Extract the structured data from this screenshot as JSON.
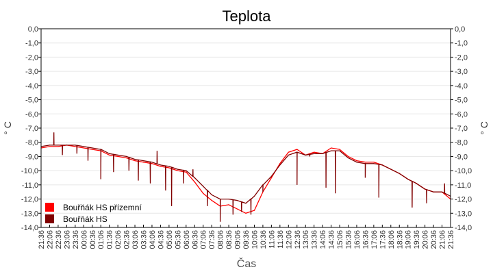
{
  "chart_data": {
    "type": "line",
    "title": "Teplota",
    "xlabel": "Čas",
    "ylabel": "° C",
    "ylim": [
      -14,
      0
    ],
    "yticks": [
      "0,0",
      "-1,0",
      "-2,0",
      "-3,0",
      "-4,0",
      "-5,0",
      "-6,0",
      "-7,0",
      "-8,0",
      "-9,0",
      "-10,0",
      "-11,0",
      "-12,0",
      "-13,0",
      "-14,0"
    ],
    "x": [
      "21:36",
      "22:06",
      "22:36",
      "23:06",
      "23:36",
      "00:06",
      "00:36",
      "01:06",
      "01:36",
      "02:06",
      "02:36",
      "03:06",
      "03:36",
      "04:06",
      "04:36",
      "05:06",
      "05:36",
      "06:06",
      "06:36",
      "07:06",
      "07:36",
      "08:06",
      "08:36",
      "09:06",
      "09:36",
      "10:06",
      "10:36",
      "11:06",
      "11:36",
      "12:06",
      "12:36",
      "13:06",
      "13:36",
      "14:06",
      "14:36",
      "15:06",
      "15:36",
      "16:06",
      "16:36",
      "17:06",
      "17:36",
      "18:06",
      "18:36",
      "19:06",
      "19:36",
      "20:06",
      "20:36",
      "21:06",
      "21:36"
    ],
    "grid": "horizontal",
    "legend_placement": "bottom-left",
    "series": [
      {
        "name": "Bouřňák HS přízemní",
        "color": "#ff0000",
        "values": [
          -8.4,
          -8.3,
          -8.3,
          -8.2,
          -8.3,
          -8.4,
          -8.5,
          -8.6,
          -8.9,
          -9.0,
          -9.1,
          -9.3,
          -9.4,
          -9.5,
          -9.7,
          -9.8,
          -10.0,
          -10.1,
          -10.8,
          -11.6,
          -12.1,
          -12.5,
          -12.4,
          -12.7,
          -13.0,
          -12.8,
          -11.5,
          -10.5,
          -9.5,
          -8.7,
          -8.5,
          -8.9,
          -8.7,
          -8.8,
          -8.4,
          -8.5,
          -9.0,
          -9.3,
          -9.4,
          -9.4,
          -9.6,
          -9.9,
          -10.2,
          -10.6,
          -10.9,
          -11.3,
          -11.5,
          -11.5,
          -12.0
        ]
      },
      {
        "name": "Bouřňák HS",
        "color": "#800000",
        "values": [
          -8.3,
          -8.2,
          -8.2,
          -8.2,
          -8.2,
          -8.3,
          -8.4,
          -8.5,
          -8.8,
          -8.9,
          -9.0,
          -9.2,
          -9.3,
          -9.4,
          -9.6,
          -9.7,
          -9.9,
          -10.0,
          -10.5,
          -11.1,
          -11.7,
          -12.0,
          -12.0,
          -12.1,
          -12.3,
          -11.8,
          -11.0,
          -10.4,
          -9.6,
          -8.9,
          -8.7,
          -8.9,
          -8.8,
          -8.8,
          -8.6,
          -8.6,
          -9.1,
          -9.4,
          -9.5,
          -9.5,
          -9.6,
          -9.9,
          -10.2,
          -10.6,
          -10.9,
          -11.3,
          -11.5,
          -11.5,
          -11.8
        ],
        "spikes": [
          [
            1.5,
            -7.3
          ],
          [
            2.5,
            -8.9
          ],
          [
            4.2,
            -8.8
          ],
          [
            5.5,
            -9.3
          ],
          [
            7.0,
            -10.6
          ],
          [
            8.5,
            -10.1
          ],
          [
            10.3,
            -10.0
          ],
          [
            11.4,
            -10.7
          ],
          [
            12.8,
            -10.9
          ],
          [
            13.6,
            -8.6
          ],
          [
            14.6,
            -11.4
          ],
          [
            15.3,
            -12.5
          ],
          [
            16.7,
            -10.9
          ],
          [
            17.8,
            -9.9
          ],
          [
            19.5,
            -12.5
          ],
          [
            21.0,
            -13.6
          ],
          [
            22.5,
            -13.1
          ],
          [
            23.5,
            -12.9
          ],
          [
            24.6,
            -13.1
          ],
          [
            26.0,
            -11.5
          ],
          [
            30.0,
            -11.0
          ],
          [
            31.5,
            -9.0
          ],
          [
            33.4,
            -11.2
          ],
          [
            34.5,
            -11.6
          ],
          [
            38.0,
            -10.5
          ],
          [
            39.6,
            -11.9
          ],
          [
            43.5,
            -12.6
          ],
          [
            45.2,
            -12.3
          ],
          [
            47.3,
            -10.9
          ]
        ]
      }
    ]
  }
}
